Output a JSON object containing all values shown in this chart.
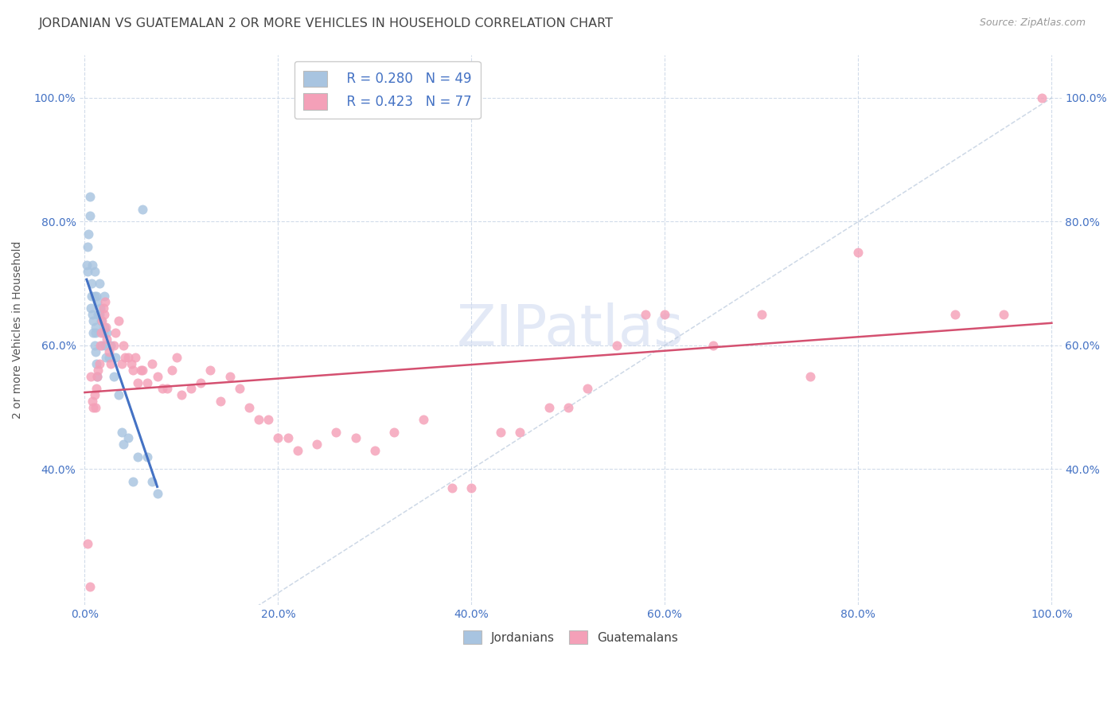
{
  "title": "JORDANIAN VS GUATEMALAN 2 OR MORE VEHICLES IN HOUSEHOLD CORRELATION CHART",
  "source": "Source: ZipAtlas.com",
  "ylabel": "2 or more Vehicles in Household",
  "color_jordan": "#a8c4e0",
  "color_guate": "#f4a0b8",
  "color_jordan_line": "#4472c4",
  "color_guate_line": "#d45070",
  "color_diagonal": "#b8c8dc",
  "watermark": "ZIPatlas",
  "watermark_color": "#ccd8f0",
  "tick_color": "#4472c4",
  "title_color": "#444444",
  "grid_color": "#ccd8e8",
  "jordan_x": [
    0.2,
    0.3,
    0.3,
    0.4,
    0.5,
    0.5,
    0.6,
    0.7,
    0.7,
    0.8,
    0.8,
    0.9,
    0.9,
    1.0,
    1.0,
    1.0,
    1.1,
    1.1,
    1.1,
    1.2,
    1.2,
    1.3,
    1.3,
    1.4,
    1.5,
    1.5,
    1.6,
    1.7,
    1.8,
    1.9,
    2.0,
    2.0,
    2.1,
    2.2,
    2.3,
    2.5,
    2.7,
    3.0,
    3.2,
    3.5,
    3.8,
    4.0,
    4.5,
    5.0,
    5.5,
    6.0,
    6.5,
    7.0,
    7.5
  ],
  "jordan_y": [
    73,
    76,
    72,
    78,
    84,
    81,
    66,
    68,
    70,
    65,
    73,
    62,
    64,
    68,
    60,
    72,
    62,
    63,
    59,
    68,
    57,
    55,
    67,
    65,
    65,
    70,
    66,
    64,
    60,
    62,
    63,
    68,
    60,
    58,
    62,
    58,
    60,
    55,
    58,
    52,
    46,
    44,
    45,
    38,
    42,
    82,
    42,
    38,
    36
  ],
  "guate_x": [
    0.3,
    0.5,
    0.6,
    0.8,
    0.9,
    1.0,
    1.1,
    1.2,
    1.3,
    1.4,
    1.5,
    1.6,
    1.7,
    1.8,
    1.9,
    2.0,
    2.1,
    2.2,
    2.3,
    2.5,
    2.7,
    3.0,
    3.2,
    3.5,
    3.8,
    4.0,
    4.2,
    4.5,
    4.8,
    5.0,
    5.2,
    5.5,
    5.8,
    6.0,
    6.5,
    7.0,
    7.5,
    8.0,
    8.5,
    9.0,
    9.5,
    10.0,
    11.0,
    12.0,
    13.0,
    14.0,
    15.0,
    16.0,
    17.0,
    18.0,
    19.0,
    20.0,
    21.0,
    22.0,
    24.0,
    26.0,
    28.0,
    30.0,
    32.0,
    35.0,
    38.0,
    40.0,
    43.0,
    45.0,
    48.0,
    50.0,
    52.0,
    55.0,
    58.0,
    60.0,
    65.0,
    70.0,
    75.0,
    80.0,
    90.0,
    95.0,
    99.0
  ],
  "guate_y": [
    28,
    21,
    55,
    51,
    50,
    52,
    50,
    53,
    55,
    56,
    57,
    60,
    62,
    64,
    66,
    65,
    67,
    63,
    61,
    59,
    57,
    60,
    62,
    64,
    57,
    60,
    58,
    58,
    57,
    56,
    58,
    54,
    56,
    56,
    54,
    57,
    55,
    53,
    53,
    56,
    58,
    52,
    53,
    54,
    56,
    51,
    55,
    53,
    50,
    48,
    48,
    45,
    45,
    43,
    44,
    46,
    45,
    43,
    46,
    48,
    37,
    37,
    46,
    46,
    50,
    50,
    53,
    60,
    65,
    65,
    60,
    65,
    55,
    75,
    65,
    65,
    100
  ]
}
